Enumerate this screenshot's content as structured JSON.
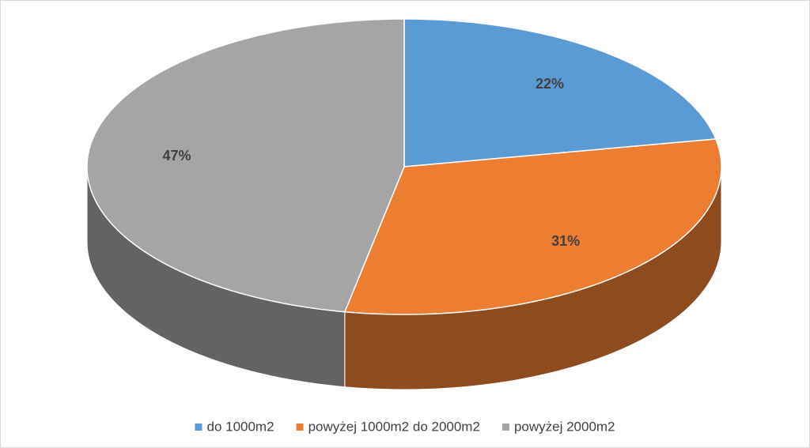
{
  "chart_data": {
    "type": "pie3d",
    "categories": [
      "do 1000m2",
      "powyżej 1000m2 do 2000m2",
      "powyżej 2000m2"
    ],
    "values": [
      22,
      31,
      47
    ],
    "value_labels": [
      "22%",
      "31%",
      "47%"
    ],
    "colors": [
      "#5b9bd5",
      "#ed7d31",
      "#a5a5a5"
    ],
    "legend": "bottom"
  }
}
